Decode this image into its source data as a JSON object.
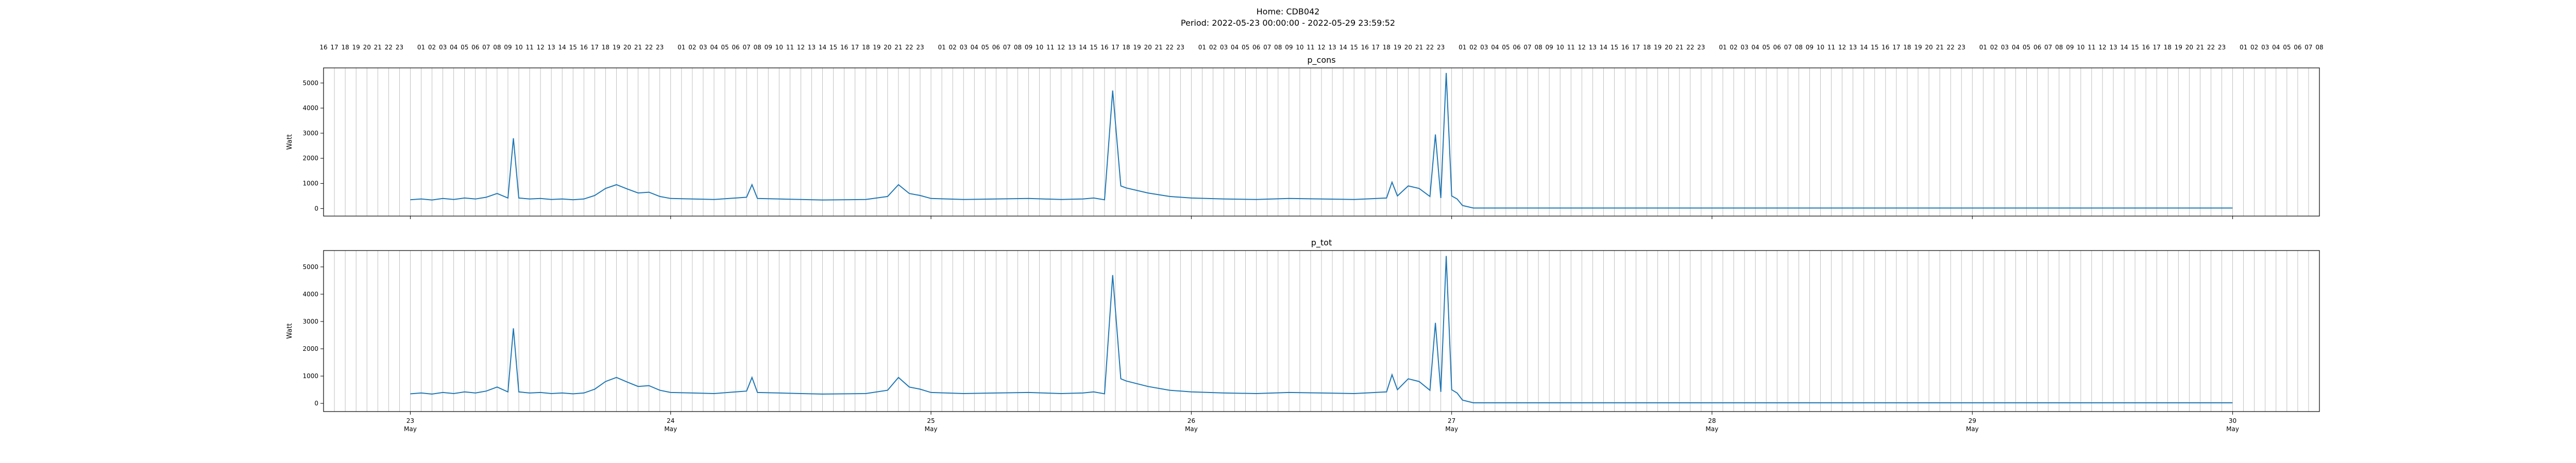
{
  "figure": {
    "title_line1": "Home: CDB042",
    "title_line2": "Period: 2022-05-23 00:00:00 - 2022-05-29 23:59:52",
    "line_color": "#1f77b4",
    "grid_color": "#b0b0b0",
    "hour_labels_start_hour": 16,
    "hour_labels_end_hour": 8
  },
  "chart_data": [
    {
      "type": "line",
      "title": "p_cons",
      "xlabel": "",
      "ylabel": "Watt",
      "xlim": [
        "2022-05-22 16:00",
        "2022-05-30 08:00"
      ],
      "ylim": [
        -300,
        5600
      ],
      "yticks": [
        0,
        1000,
        2000,
        3000,
        4000,
        5000
      ],
      "xticks": [
        "2022-05-23",
        "2022-05-24",
        "2022-05-25",
        "2022-05-26",
        "2022-05-27",
        "2022-05-28",
        "2022-05-29",
        "2022-05-30"
      ],
      "xtick_labels_day": [
        "23",
        "24",
        "25",
        "26",
        "27",
        "28",
        "29",
        "30"
      ],
      "xtick_labels_month": [
        "May",
        "May",
        "May",
        "May",
        "May",
        "May",
        "May",
        "May"
      ],
      "grid": "hourly vertical lines",
      "series": [
        {
          "x": [
            "2022-05-23 00:00",
            "2022-05-23 01:00",
            "2022-05-23 02:00",
            "2022-05-23 03:00",
            "2022-05-23 04:00",
            "2022-05-23 05:00",
            "2022-05-23 06:00",
            "2022-05-23 07:00",
            "2022-05-23 08:00",
            "2022-05-23 09:00",
            "2022-05-23 09:30",
            "2022-05-23 10:00",
            "2022-05-23 11:00",
            "2022-05-23 12:00",
            "2022-05-23 13:00",
            "2022-05-23 14:00",
            "2022-05-23 15:00",
            "2022-05-23 16:00",
            "2022-05-23 17:00",
            "2022-05-23 18:00",
            "2022-05-23 19:00",
            "2022-05-23 20:00",
            "2022-05-23 21:00",
            "2022-05-23 22:00",
            "2022-05-23 23:00",
            "2022-05-24 00:00",
            "2022-05-24 02:00",
            "2022-05-24 04:00",
            "2022-05-24 06:00",
            "2022-05-24 07:00",
            "2022-05-24 07:30",
            "2022-05-24 08:00",
            "2022-05-24 10:00",
            "2022-05-24 12:00",
            "2022-05-24 14:00",
            "2022-05-24 16:00",
            "2022-05-24 18:00",
            "2022-05-24 20:00",
            "2022-05-24 21:00",
            "2022-05-24 22:00",
            "2022-05-24 23:00",
            "2022-05-25 00:00",
            "2022-05-25 03:00",
            "2022-05-25 06:00",
            "2022-05-25 09:00",
            "2022-05-25 12:00",
            "2022-05-25 14:00",
            "2022-05-25 15:00",
            "2022-05-25 16:00",
            "2022-05-25 16:45",
            "2022-05-25 17:30",
            "2022-05-25 18:00",
            "2022-05-25 20:00",
            "2022-05-25 22:00",
            "2022-05-26 00:00",
            "2022-05-26 03:00",
            "2022-05-26 06:00",
            "2022-05-26 09:00",
            "2022-05-26 12:00",
            "2022-05-26 15:00",
            "2022-05-26 18:00",
            "2022-05-26 18:30",
            "2022-05-26 19:00",
            "2022-05-26 20:00",
            "2022-05-26 21:00",
            "2022-05-26 22:00",
            "2022-05-26 22:30",
            "2022-05-26 23:00",
            "2022-05-26 23:30",
            "2022-05-27 00:00",
            "2022-05-27 00:30",
            "2022-05-27 01:00",
            "2022-05-27 02:00",
            "2022-05-28 00:00",
            "2022-05-29 00:00",
            "2022-05-29 23:59"
          ],
          "y": [
            350,
            380,
            340,
            400,
            360,
            420,
            380,
            450,
            600,
            420,
            2800,
            420,
            380,
            400,
            360,
            380,
            350,
            380,
            520,
            800,
            950,
            780,
            620,
            650,
            480,
            400,
            380,
            360,
            420,
            450,
            950,
            400,
            380,
            360,
            340,
            350,
            360,
            480,
            950,
            600,
            520,
            400,
            360,
            380,
            400,
            360,
            380,
            420,
            350,
            4700,
            900,
            820,
            620,
            480,
            420,
            380,
            360,
            400,
            380,
            360,
            420,
            1050,
            500,
            900,
            800,
            480,
            2950,
            420,
            5400,
            500,
            380,
            120,
            20,
            20,
            20,
            20
          ],
          "values_note": ""
        }
      ]
    },
    {
      "type": "line",
      "title": "p_tot",
      "xlabel": "",
      "ylabel": "Watt",
      "xlim": [
        "2022-05-22 16:00",
        "2022-05-30 08:00"
      ],
      "ylim": [
        -300,
        5600
      ],
      "yticks": [
        0,
        1000,
        2000,
        3000,
        4000,
        5000
      ],
      "xticks": [
        "2022-05-23",
        "2022-05-24",
        "2022-05-25",
        "2022-05-26",
        "2022-05-27",
        "2022-05-28",
        "2022-05-29",
        "2022-05-30"
      ],
      "xtick_labels_day": [
        "23",
        "24",
        "25",
        "26",
        "27",
        "28",
        "29",
        "30"
      ],
      "xtick_labels_month": [
        "May",
        "May",
        "May",
        "May",
        "May",
        "May",
        "May",
        "May"
      ],
      "grid": "hourly vertical lines",
      "series": [
        {
          "x": [
            "2022-05-23 00:00",
            "2022-05-23 01:00",
            "2022-05-23 02:00",
            "2022-05-23 03:00",
            "2022-05-23 04:00",
            "2022-05-23 05:00",
            "2022-05-23 06:00",
            "2022-05-23 07:00",
            "2022-05-23 08:00",
            "2022-05-23 09:00",
            "2022-05-23 09:30",
            "2022-05-23 10:00",
            "2022-05-23 11:00",
            "2022-05-23 12:00",
            "2022-05-23 13:00",
            "2022-05-23 14:00",
            "2022-05-23 15:00",
            "2022-05-23 16:00",
            "2022-05-23 17:00",
            "2022-05-23 18:00",
            "2022-05-23 19:00",
            "2022-05-23 20:00",
            "2022-05-23 21:00",
            "2022-05-23 22:00",
            "2022-05-23 23:00",
            "2022-05-24 00:00",
            "2022-05-24 02:00",
            "2022-05-24 04:00",
            "2022-05-24 06:00",
            "2022-05-24 07:00",
            "2022-05-24 07:30",
            "2022-05-24 08:00",
            "2022-05-24 10:00",
            "2022-05-24 12:00",
            "2022-05-24 14:00",
            "2022-05-24 16:00",
            "2022-05-24 18:00",
            "2022-05-24 20:00",
            "2022-05-24 21:00",
            "2022-05-24 22:00",
            "2022-05-24 23:00",
            "2022-05-25 00:00",
            "2022-05-25 03:00",
            "2022-05-25 06:00",
            "2022-05-25 09:00",
            "2022-05-25 12:00",
            "2022-05-25 14:00",
            "2022-05-25 15:00",
            "2022-05-25 16:00",
            "2022-05-25 16:45",
            "2022-05-25 17:30",
            "2022-05-25 18:00",
            "2022-05-25 20:00",
            "2022-05-25 22:00",
            "2022-05-26 00:00",
            "2022-05-26 03:00",
            "2022-05-26 06:00",
            "2022-05-26 09:00",
            "2022-05-26 12:00",
            "2022-05-26 15:00",
            "2022-05-26 18:00",
            "2022-05-26 18:30",
            "2022-05-26 19:00",
            "2022-05-26 20:00",
            "2022-05-26 21:00",
            "2022-05-26 22:00",
            "2022-05-26 22:30",
            "2022-05-26 23:00",
            "2022-05-26 23:30",
            "2022-05-27 00:00",
            "2022-05-27 00:30",
            "2022-05-27 01:00",
            "2022-05-27 02:00",
            "2022-05-28 00:00",
            "2022-05-29 00:00",
            "2022-05-29 23:59"
          ],
          "y": [
            350,
            380,
            340,
            400,
            360,
            420,
            380,
            450,
            600,
            420,
            2750,
            420,
            380,
            400,
            360,
            380,
            350,
            380,
            520,
            800,
            950,
            780,
            620,
            650,
            480,
            400,
            380,
            360,
            420,
            450,
            950,
            400,
            380,
            360,
            340,
            350,
            360,
            480,
            950,
            600,
            520,
            400,
            360,
            380,
            400,
            360,
            380,
            420,
            350,
            4700,
            900,
            820,
            620,
            480,
            420,
            380,
            360,
            400,
            380,
            360,
            420,
            1050,
            500,
            900,
            800,
            480,
            2950,
            420,
            5400,
            500,
            380,
            120,
            20,
            20,
            20,
            20
          ],
          "values_note": ""
        }
      ]
    }
  ]
}
